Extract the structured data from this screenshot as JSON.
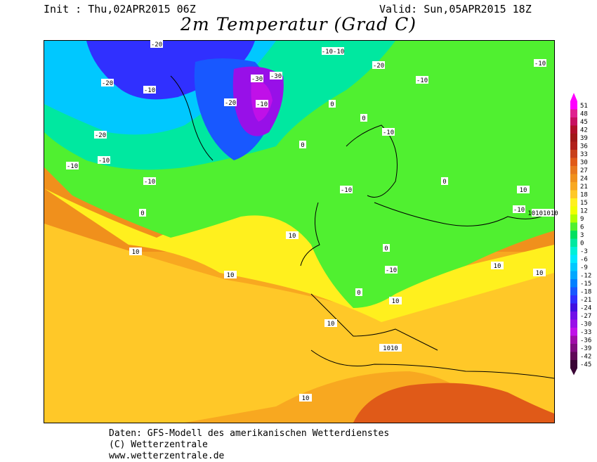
{
  "header": {
    "init": "Init : Thu,02APR2015 06Z",
    "valid": "Valid: Sun,05APR2015 18Z",
    "title": "2m Temperatur (Grad C)"
  },
  "legend": {
    "labels": [
      "51",
      "48",
      "45",
      "42",
      "39",
      "36",
      "33",
      "30",
      "27",
      "24",
      "21",
      "18",
      "15",
      "12",
      "9",
      "6",
      "3",
      "0",
      "-3",
      "-6",
      "-9",
      "-12",
      "-15",
      "-18",
      "-21",
      "-24",
      "-27",
      "-30",
      "-33",
      "-36",
      "-39",
      "-42",
      "-45"
    ],
    "colors": [
      "#ff00ff",
      "#e0208f",
      "#c81060",
      "#b0102a",
      "#a01818",
      "#b0201a",
      "#c8401a",
      "#e05a18",
      "#e8781e",
      "#f0901c",
      "#f8a820",
      "#ffc828",
      "#fff01e",
      "#f0ff00",
      "#b0ff00",
      "#50f030",
      "#00e060",
      "#00e8a0",
      "#00f0d8",
      "#00e8ff",
      "#00c8ff",
      "#00a8ff",
      "#0080ff",
      "#1858ff",
      "#3030ff",
      "#4010e0",
      "#7010e8",
      "#9810e8",
      "#c010e8",
      "#a00ca8",
      "#800c80",
      "#600858",
      "#3a0435"
    ]
  },
  "credits": {
    "line1": "Daten: GFS-Modell des amerikanischen Wetterdienstes",
    "line2": "(C) Wetterzentrale",
    "line3": "www.wetterzentrale.de"
  },
  "map_labels": [
    "-20",
    "-10",
    "-30",
    "0",
    "10",
    "-10-10",
    "1010",
    "10101010"
  ]
}
